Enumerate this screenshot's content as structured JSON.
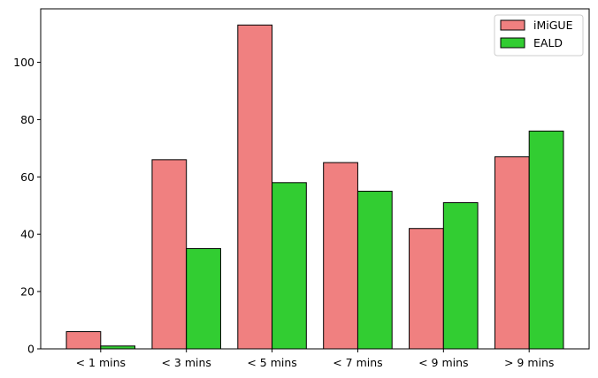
{
  "chart_data": {
    "type": "bar",
    "categories": [
      "< 1 mins",
      "< 3 mins",
      "< 5 mins",
      "< 7 mins",
      "< 9 mins",
      "> 9 mins"
    ],
    "series": [
      {
        "name": "iMiGUE",
        "color": "#f08080",
        "values": [
          6,
          66,
          113,
          65,
          42,
          67
        ]
      },
      {
        "name": "EALD",
        "color": "#32cd32",
        "values": [
          1,
          35,
          58,
          55,
          51,
          76
        ]
      }
    ],
    "title": "",
    "xlabel": "",
    "ylabel": "",
    "ylim": [
      0,
      118.65
    ],
    "yticks": [
      0,
      20,
      40,
      60,
      80,
      100
    ],
    "grid": false,
    "legend_position": "top-right",
    "bar_edge_color": "#000000"
  }
}
